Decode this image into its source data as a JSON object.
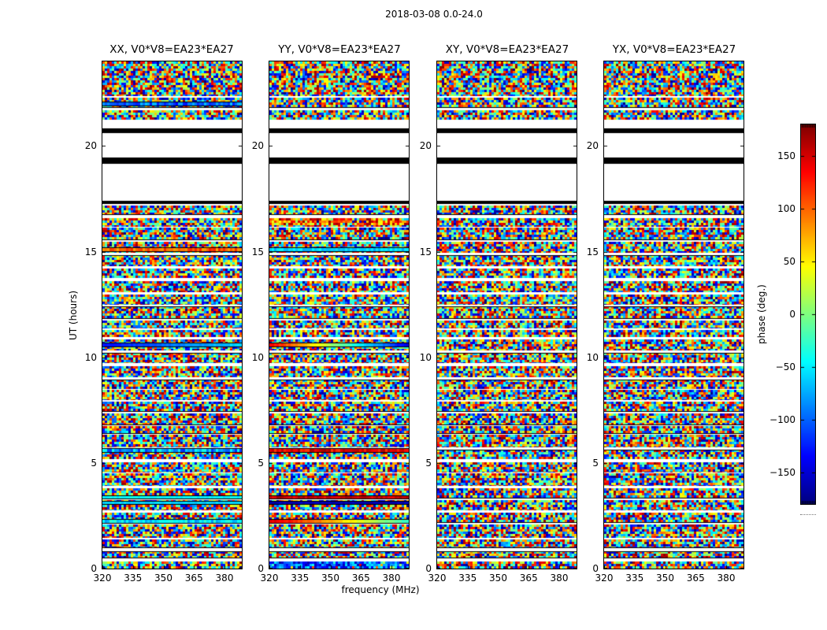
{
  "figure": {
    "suptitle": "2018-03-08 0.0-24.0",
    "xlabel": "frequency (MHz)",
    "ylabel": "UT (hours)"
  },
  "chart_data": {
    "type": "heatmap",
    "title": "2018-03-08 0.0-24.0",
    "xlabel": "frequency (MHz)",
    "ylabel": "UT (hours)",
    "x_range_mhz": [
      320,
      388.5
    ],
    "x_ticks": [
      320,
      335,
      350,
      365,
      380
    ],
    "y_range_hours": [
      0,
      24
    ],
    "y_ticks": [
      0,
      5,
      10,
      15,
      20
    ],
    "panels": [
      {
        "pol": "XX",
        "title": "XX, V0*V8=EA23*EA27"
      },
      {
        "pol": "YY",
        "title": "YY, V0*V8=EA23*EA27"
      },
      {
        "pol": "XY",
        "title": "XY, V0*V8=EA23*EA27"
      },
      {
        "pol": "YX",
        "title": "YX, V0*V8=EA23*EA27"
      }
    ],
    "colorbar": {
      "label": "phase (deg.)",
      "colormap": "jet",
      "range": [
        -180,
        180
      ],
      "ticks": [
        150,
        100,
        50,
        0,
        -50,
        -100,
        -150
      ],
      "tick_labels": [
        "150",
        "100",
        "50",
        "0",
        "−50",
        "−100",
        "−150"
      ]
    },
    "values": "uniform random phase noise per time-frequency cell, organized in scan blocks separated by thin white gaps",
    "scan_structure": {
      "mean_scan_hours": 0.45,
      "mean_gap_hours": 0.08
    },
    "no_data_gap_hours": {
      "start": 17.25,
      "end": 21.24,
      "black_bands": [
        [
          17.25,
          17.4
        ],
        [
          19.15,
          19.45
        ],
        [
          20.61,
          20.83
        ]
      ]
    },
    "special_rows": {
      "XX": [
        {
          "t0": 21.93,
          "t1": 22.05,
          "style": "streak",
          "phase": -100,
          "var": 35
        },
        {
          "t0": 15.02,
          "t1": 15.16,
          "style": "streak",
          "phase": 100,
          "var": 25
        },
        {
          "t0": 10.5,
          "t1": 10.66,
          "style": "gradient",
          "from": -130,
          "to": -60
        },
        {
          "t0": 5.5,
          "t1": 5.66,
          "style": "streak",
          "phase": -80,
          "var": 45
        },
        {
          "t0": 3.3,
          "t1": 3.44,
          "style": "streak",
          "phase": -45,
          "var": 12
        },
        {
          "t0": 3.06,
          "t1": 3.18,
          "style": "streak",
          "phase": -60,
          "var": 8
        },
        {
          "t0": 2.18,
          "t1": 2.3,
          "style": "streak",
          "phase": -55,
          "var": 30
        }
      ],
      "YY": [
        {
          "t0": 16.2,
          "t1": 16.65,
          "style": "warm-noise"
        },
        {
          "t0": 15.02,
          "t1": 15.16,
          "style": "streak",
          "phase": -60,
          "var": 18
        },
        {
          "t0": 10.5,
          "t1": 10.66,
          "style": "gradient",
          "from": 140,
          "to": -150
        },
        {
          "t0": 5.5,
          "t1": 5.66,
          "style": "streak",
          "phase": 140,
          "var": 28
        },
        {
          "t0": 3.3,
          "t1": 3.44,
          "style": "streak",
          "phase": 150,
          "var": 20
        },
        {
          "t0": 3.06,
          "t1": 3.18,
          "style": "streak",
          "phase": -162,
          "var": 8
        },
        {
          "t0": 2.18,
          "t1": 2.3,
          "style": "gradient",
          "from": 150,
          "to": -30
        },
        {
          "t0": 0.02,
          "t1": 0.32,
          "style": "cool-noise"
        }
      ],
      "XY": [],
      "YX": []
    }
  }
}
